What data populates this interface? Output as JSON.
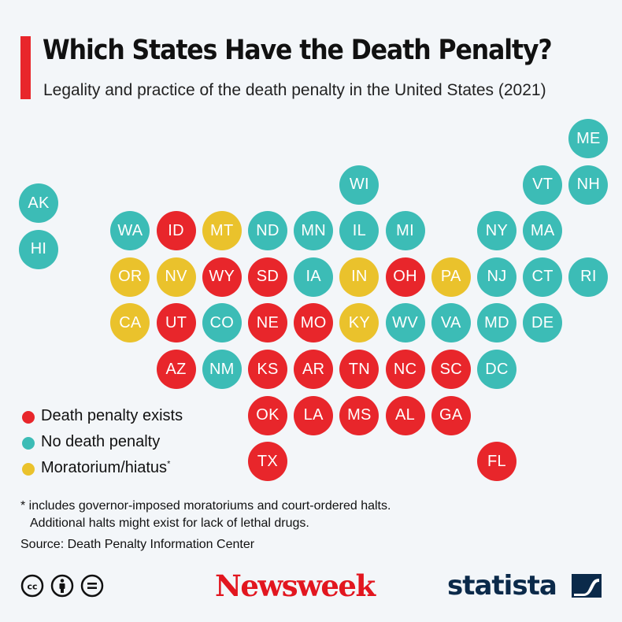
{
  "header": {
    "title": "Which States Have the Death Penalty?",
    "subtitle": "Legality and practice of the death penalty in the United States (2021)"
  },
  "colors": {
    "accent": "#e8262b",
    "death_penalty_exists": "#e8262b",
    "no_death_penalty": "#3cbcb6",
    "moratorium": "#eac22c",
    "background": "#f3f6f9"
  },
  "chart_data": {
    "type": "tile-map",
    "title": "Which States Have the Death Penalty?",
    "subtitle": "Legality and practice of the death penalty in the United States (2021)",
    "categories": [
      "Death penalty exists",
      "No death penalty",
      "Moratorium/hiatus"
    ],
    "legend_placement": "bottom-left",
    "states": [
      {
        "code": "ME",
        "status": "none",
        "row": 0,
        "col": 12
      },
      {
        "code": "WI",
        "status": "none",
        "row": 1,
        "col": 7
      },
      {
        "code": "VT",
        "status": "none",
        "row": 1,
        "col": 11
      },
      {
        "code": "NH",
        "status": "none",
        "row": 1,
        "col": 12
      },
      {
        "code": "AK",
        "status": "none",
        "row": 1.4,
        "col": 0
      },
      {
        "code": "WA",
        "status": "none",
        "row": 2,
        "col": 2
      },
      {
        "code": "ID",
        "status": "exists",
        "row": 2,
        "col": 3
      },
      {
        "code": "MT",
        "status": "moratorium",
        "row": 2,
        "col": 4
      },
      {
        "code": "ND",
        "status": "none",
        "row": 2,
        "col": 5
      },
      {
        "code": "MN",
        "status": "none",
        "row": 2,
        "col": 6
      },
      {
        "code": "IL",
        "status": "none",
        "row": 2,
        "col": 7
      },
      {
        "code": "MI",
        "status": "none",
        "row": 2,
        "col": 8
      },
      {
        "code": "NY",
        "status": "none",
        "row": 2,
        "col": 10
      },
      {
        "code": "MA",
        "status": "none",
        "row": 2,
        "col": 11
      },
      {
        "code": "HI",
        "status": "none",
        "row": 2.4,
        "col": 0
      },
      {
        "code": "OR",
        "status": "moratorium",
        "row": 3,
        "col": 2
      },
      {
        "code": "NV",
        "status": "moratorium",
        "row": 3,
        "col": 3
      },
      {
        "code": "WY",
        "status": "exists",
        "row": 3,
        "col": 4
      },
      {
        "code": "SD",
        "status": "exists",
        "row": 3,
        "col": 5
      },
      {
        "code": "IA",
        "status": "none",
        "row": 3,
        "col": 6
      },
      {
        "code": "IN",
        "status": "moratorium",
        "row": 3,
        "col": 7
      },
      {
        "code": "OH",
        "status": "exists",
        "row": 3,
        "col": 8
      },
      {
        "code": "PA",
        "status": "moratorium",
        "row": 3,
        "col": 9
      },
      {
        "code": "NJ",
        "status": "none",
        "row": 3,
        "col": 10
      },
      {
        "code": "CT",
        "status": "none",
        "row": 3,
        "col": 11
      },
      {
        "code": "RI",
        "status": "none",
        "row": 3,
        "col": 12
      },
      {
        "code": "CA",
        "status": "moratorium",
        "row": 4,
        "col": 2
      },
      {
        "code": "UT",
        "status": "exists",
        "row": 4,
        "col": 3
      },
      {
        "code": "CO",
        "status": "none",
        "row": 4,
        "col": 4
      },
      {
        "code": "NE",
        "status": "exists",
        "row": 4,
        "col": 5
      },
      {
        "code": "MO",
        "status": "exists",
        "row": 4,
        "col": 6
      },
      {
        "code": "KY",
        "status": "moratorium",
        "row": 4,
        "col": 7
      },
      {
        "code": "WV",
        "status": "none",
        "row": 4,
        "col": 8
      },
      {
        "code": "VA",
        "status": "none",
        "row": 4,
        "col": 9
      },
      {
        "code": "MD",
        "status": "none",
        "row": 4,
        "col": 10
      },
      {
        "code": "DE",
        "status": "none",
        "row": 4,
        "col": 11
      },
      {
        "code": "AZ",
        "status": "exists",
        "row": 5,
        "col": 3
      },
      {
        "code": "NM",
        "status": "none",
        "row": 5,
        "col": 4
      },
      {
        "code": "KS",
        "status": "exists",
        "row": 5,
        "col": 5
      },
      {
        "code": "AR",
        "status": "exists",
        "row": 5,
        "col": 6
      },
      {
        "code": "TN",
        "status": "exists",
        "row": 5,
        "col": 7
      },
      {
        "code": "NC",
        "status": "exists",
        "row": 5,
        "col": 8
      },
      {
        "code": "SC",
        "status": "exists",
        "row": 5,
        "col": 9
      },
      {
        "code": "DC",
        "status": "none",
        "row": 5,
        "col": 10
      },
      {
        "code": "OK",
        "status": "exists",
        "row": 6,
        "col": 5
      },
      {
        "code": "LA",
        "status": "exists",
        "row": 6,
        "col": 6
      },
      {
        "code": "MS",
        "status": "exists",
        "row": 6,
        "col": 7
      },
      {
        "code": "AL",
        "status": "exists",
        "row": 6,
        "col": 8
      },
      {
        "code": "GA",
        "status": "exists",
        "row": 6,
        "col": 9
      },
      {
        "code": "TX",
        "status": "exists",
        "row": 7,
        "col": 5
      },
      {
        "code": "FL",
        "status": "exists",
        "row": 7,
        "col": 10
      }
    ]
  },
  "legend": {
    "exists": "Death penalty exists",
    "none": "No death penalty",
    "moratorium": "Moratorium/hiatus",
    "moratorium_marker": "*"
  },
  "footer": {
    "footnote_line1": "* includes governor-imposed moratoriums and court-ordered halts.",
    "footnote_line2": "Additional halts might exist for lack of lethal drugs.",
    "source": "Source: Death Penalty Information Center",
    "publisher": "Newsweek",
    "data_brand": "statista",
    "license_icons": [
      "cc-icon",
      "attribution-icon",
      "no-derivatives-icon"
    ]
  }
}
